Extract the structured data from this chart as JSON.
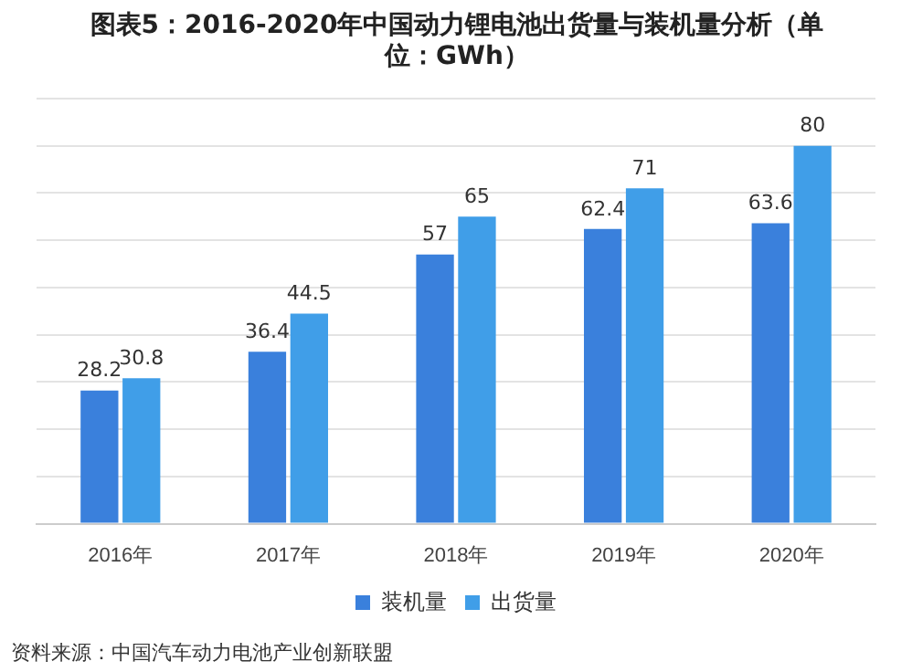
{
  "chart_data": {
    "type": "bar",
    "title": "图表5：2016-2020年中国动力锂电池出货量与装机量分析（单位：GWh）",
    "categories": [
      "2016年",
      "2017年",
      "2018年",
      "2019年",
      "2020年"
    ],
    "series": [
      {
        "name": "装机量",
        "color": "#3a80dc",
        "values": [
          28.2,
          36.4,
          57,
          62.4,
          63.6
        ]
      },
      {
        "name": "出货量",
        "color": "#409ee8",
        "values": [
          30.8,
          44.5,
          65,
          71,
          80
        ]
      }
    ],
    "ylim": [
      0,
      90
    ],
    "yticks": [
      {
        "value": 0,
        "label": null
      },
      {
        "value": 10,
        "label": null
      },
      {
        "value": 20,
        "label": null
      },
      {
        "value": 30,
        "label": null
      },
      {
        "value": 40,
        "label": null
      },
      {
        "value": 50,
        "label": null
      },
      {
        "value": 60,
        "label": null
      },
      {
        "value": 70,
        "label": null
      },
      {
        "value": 80,
        "label": null
      },
      {
        "value": 90,
        "label": null
      }
    ],
    "tick_labels": "x",
    "grid": "y",
    "legend": "bottom",
    "data_labels": true,
    "annotations": [
      "资料来源：中国汽车动力电池产业创新联盟"
    ]
  }
}
